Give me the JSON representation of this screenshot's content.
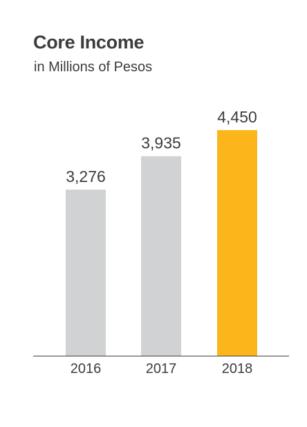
{
  "chart_data": {
    "type": "bar",
    "title": "Core Income",
    "subtitle": "in Millions of Pesos",
    "categories": [
      "2016",
      "2017",
      "2018"
    ],
    "values": [
      3276,
      3935,
      4450
    ],
    "value_labels": [
      "3,276",
      "3,935",
      "4,450"
    ],
    "ylim": [
      0,
      4450
    ],
    "grid": false,
    "colors": [
      "#d1d2d3",
      "#d1d2d3",
      "#fcb61c"
    ],
    "axis_color": "#3c3c3c"
  }
}
